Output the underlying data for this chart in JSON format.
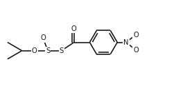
{
  "bg_color": "#ffffff",
  "line_color": "#111111",
  "line_width": 1.15,
  "text_color": "#111111",
  "font_size": 7.2,
  "figsize": [
    2.55,
    1.28
  ],
  "dpi": 100,
  "xlim": [
    -0.3,
    10.2
  ],
  "ylim": [
    0.3,
    5.5
  ]
}
